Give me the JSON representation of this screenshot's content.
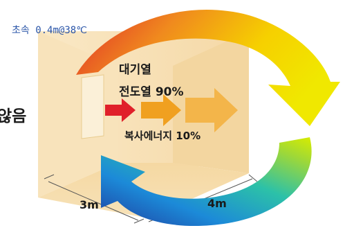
{
  "wind_condition": "초속 0.4m@38℃",
  "side_text_fragment": "않음",
  "heat_sources": {
    "air_heat": "대기열",
    "conduction": "전도열  90%",
    "radiation": "복사에너지  10%"
  },
  "dimensions": {
    "width": "3m",
    "depth": "4m"
  },
  "colors": {
    "room_wall": "#f6deb0",
    "room_floor": "#f3d39a",
    "arrow_red": "#e0202a",
    "arrow_orange": "#f0a020",
    "arrow_light_orange": "#f3b54a",
    "cycle_top_start": "#e02a2a",
    "cycle_top_end": "#f0e800",
    "cycle_bottom_start": "#1e3c9e",
    "cycle_bottom_end": "#cfe800",
    "wind_text": "#2a55a8"
  }
}
